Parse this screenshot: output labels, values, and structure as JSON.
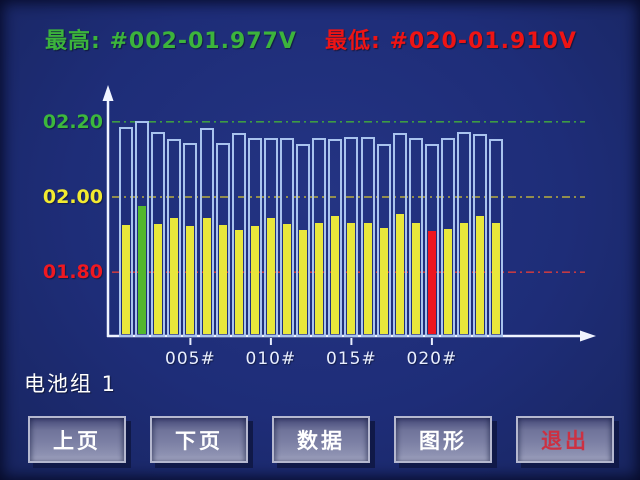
{
  "header": {
    "max_label": "最高:",
    "max_value": "#002-01.977V",
    "max_color": "#3cb43c",
    "min_label": "最低:",
    "min_value": "#020-01.910V",
    "min_color": "#ee1414"
  },
  "chart_data": {
    "type": "bar",
    "title": "",
    "xlabel": "",
    "ylabel": "",
    "ylim": [
      1.633,
      2.29
    ],
    "grid": true,
    "legend": false,
    "gridlines": [
      {
        "v": 2.2,
        "label": "02.20",
        "label_color": "#3cb83c",
        "line_color": "#3e9b44"
      },
      {
        "v": 2.0,
        "label": "02.00",
        "label_color": "#f2ea30",
        "line_color": "#b9ae3e"
      },
      {
        "v": 1.8,
        "label": "01.80",
        "label_color": "#f01820",
        "line_color": "#c23a44"
      }
    ],
    "x_ticks": [
      {
        "at": 5,
        "label": "005#"
      },
      {
        "at": 10,
        "label": "010#"
      },
      {
        "at": 15,
        "label": "015#"
      },
      {
        "at": 20,
        "label": "020#"
      }
    ],
    "colors": {
      "normal": "#e9e73b",
      "max": "#53b72d",
      "min": "#ee161f",
      "frame": "#a9c3ee"
    },
    "batteries": [
      {
        "id": "001",
        "v": 1.926,
        "frame_v": 2.187,
        "state": "normal"
      },
      {
        "id": "002",
        "v": 1.977,
        "frame_v": 2.203,
        "state": "max"
      },
      {
        "id": "003",
        "v": 1.928,
        "frame_v": 2.173,
        "state": "normal"
      },
      {
        "id": "004",
        "v": 1.944,
        "frame_v": 2.154,
        "state": "normal"
      },
      {
        "id": "005",
        "v": 1.923,
        "frame_v": 2.144,
        "state": "normal"
      },
      {
        "id": "006",
        "v": 1.944,
        "frame_v": 2.184,
        "state": "normal"
      },
      {
        "id": "007",
        "v": 1.926,
        "frame_v": 2.144,
        "state": "normal"
      },
      {
        "id": "008",
        "v": 1.912,
        "frame_v": 2.17,
        "state": "normal"
      },
      {
        "id": "009",
        "v": 1.923,
        "frame_v": 2.157,
        "state": "normal"
      },
      {
        "id": "010",
        "v": 1.944,
        "frame_v": 2.157,
        "state": "normal"
      },
      {
        "id": "011",
        "v": 1.928,
        "frame_v": 2.157,
        "state": "normal"
      },
      {
        "id": "012",
        "v": 1.912,
        "frame_v": 2.141,
        "state": "normal"
      },
      {
        "id": "013",
        "v": 1.931,
        "frame_v": 2.157,
        "state": "normal"
      },
      {
        "id": "014",
        "v": 1.949,
        "frame_v": 2.154,
        "state": "normal"
      },
      {
        "id": "015",
        "v": 1.931,
        "frame_v": 2.16,
        "state": "normal"
      },
      {
        "id": "016",
        "v": 1.931,
        "frame_v": 2.16,
        "state": "normal"
      },
      {
        "id": "017",
        "v": 1.917,
        "frame_v": 2.141,
        "state": "normal"
      },
      {
        "id": "018",
        "v": 1.955,
        "frame_v": 2.17,
        "state": "normal"
      },
      {
        "id": "019",
        "v": 1.931,
        "frame_v": 2.157,
        "state": "normal"
      },
      {
        "id": "020",
        "v": 1.91,
        "frame_v": 2.141,
        "state": "min"
      },
      {
        "id": "021",
        "v": 1.915,
        "frame_v": 2.157,
        "state": "normal"
      },
      {
        "id": "022",
        "v": 1.931,
        "frame_v": 2.173,
        "state": "normal"
      },
      {
        "id": "023",
        "v": 1.949,
        "frame_v": 2.168,
        "state": "normal"
      },
      {
        "id": "024",
        "v": 1.931,
        "frame_v": 2.154,
        "state": "normal"
      }
    ]
  },
  "footer": {
    "group_label": "电池组 1",
    "buttons": [
      {
        "label": "上页",
        "color": "#ffffff"
      },
      {
        "label": "下页",
        "color": "#ffffff"
      },
      {
        "label": "数据",
        "color": "#ffffff"
      },
      {
        "label": "图形",
        "color": "#ffffff"
      },
      {
        "label": "退出",
        "color": "#cc3142"
      }
    ]
  }
}
